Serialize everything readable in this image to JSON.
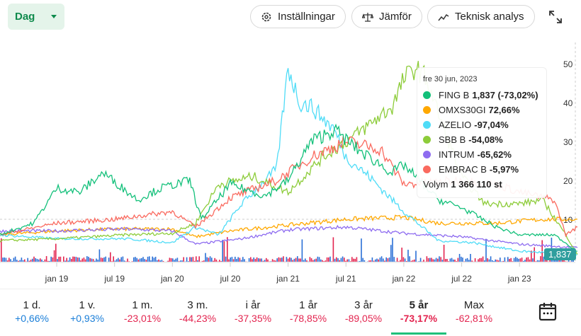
{
  "header": {
    "interval": "Dag",
    "settings": "Inställningar",
    "compare": "Jämför",
    "technical": "Teknisk analys"
  },
  "tooltip": {
    "date": "fre 30 jun, 2023",
    "rows": [
      {
        "name": "FING B",
        "value": "1,837 (-73,02%)",
        "color": "#13c07a"
      },
      {
        "name": "OMXS30GI",
        "value": "72,66%",
        "color": "#ffa800"
      },
      {
        "name": "AZELIO",
        "value": "-97,04%",
        "color": "#4fdcf7"
      },
      {
        "name": "SBB B",
        "value": "-54,08%",
        "color": "#8dcc3a"
      },
      {
        "name": "INTRUM",
        "value": "-65,62%",
        "color": "#8e6cf0"
      },
      {
        "name": "EMBRAC B",
        "value": "-5,97%",
        "color": "#fa6a5f"
      }
    ],
    "volume_label": "Volym",
    "volume": "1 366 110 st"
  },
  "last_price": "1,837",
  "periods": [
    {
      "label": "1 d.",
      "value": "+0,66%",
      "pos": true
    },
    {
      "label": "1 v.",
      "value": "+0,93%",
      "pos": true
    },
    {
      "label": "1 m.",
      "value": "-23,01%"
    },
    {
      "label": "3 m.",
      "value": "-44,23%"
    },
    {
      "label": "i år",
      "value": "-37,35%"
    },
    {
      "label": "1 år",
      "value": "-78,85%"
    },
    {
      "label": "3 år",
      "value": "-89,05%"
    },
    {
      "label": "5 år",
      "value": "-73,17%",
      "active": true
    },
    {
      "label": "Max",
      "value": "-62,81%"
    }
  ],
  "chart_data": {
    "type": "line",
    "xlim": [
      2018.5,
      2023.5
    ],
    "ylim": [
      0,
      52
    ],
    "y_ticks": [
      10,
      20,
      30,
      40,
      50
    ],
    "x_ticks": [
      {
        "t": 2019.0,
        "label": "jan 19"
      },
      {
        "t": 2019.5,
        "label": "jul 19"
      },
      {
        "t": 2020.0,
        "label": "jan 20"
      },
      {
        "t": 2020.5,
        "label": "jul 20"
      },
      {
        "t": 2021.0,
        "label": "jan 21"
      },
      {
        "t": 2021.5,
        "label": "jul 21"
      },
      {
        "t": 2022.0,
        "label": "jan 22"
      },
      {
        "t": 2022.5,
        "label": "jul 22"
      },
      {
        "t": 2023.0,
        "label": "jan 23"
      }
    ],
    "series": [
      {
        "name": "OMXS30GI",
        "color": "#ffa800",
        "points": [
          [
            2018.5,
            6
          ],
          [
            2019.0,
            7
          ],
          [
            2019.5,
            7.5
          ],
          [
            2020.0,
            7.5
          ],
          [
            2020.2,
            5.5
          ],
          [
            2020.5,
            7
          ],
          [
            2021.0,
            8.5
          ],
          [
            2021.5,
            10
          ],
          [
            2022.0,
            10.5
          ],
          [
            2022.3,
            9
          ],
          [
            2022.8,
            9
          ],
          [
            2023.2,
            10
          ],
          [
            2023.5,
            10
          ]
        ]
      },
      {
        "name": "INTRUM",
        "color": "#8e6cf0",
        "points": [
          [
            2018.5,
            7
          ],
          [
            2019.0,
            7
          ],
          [
            2019.6,
            7.5
          ],
          [
            2020.0,
            7
          ],
          [
            2020.2,
            3.6
          ],
          [
            2020.6,
            5
          ],
          [
            2021.0,
            7.3
          ],
          [
            2021.5,
            8
          ],
          [
            2022.0,
            6.4
          ],
          [
            2022.5,
            5.5
          ],
          [
            2023.0,
            3.6
          ],
          [
            2023.5,
            2.7
          ]
        ]
      },
      {
        "name": "AZELIO",
        "color": "#4fdcf7",
        "points": [
          [
            2018.5,
            6
          ],
          [
            2019.0,
            5
          ],
          [
            2019.6,
            5
          ],
          [
            2020.0,
            4
          ],
          [
            2020.2,
            8
          ],
          [
            2020.4,
            6
          ],
          [
            2020.6,
            14
          ],
          [
            2020.9,
            23
          ],
          [
            2021.0,
            49
          ],
          [
            2021.1,
            40
          ],
          [
            2021.2,
            39
          ],
          [
            2021.4,
            33
          ],
          [
            2021.5,
            26
          ],
          [
            2021.7,
            21
          ],
          [
            2022.0,
            12
          ],
          [
            2022.3,
            4.5
          ],
          [
            2022.6,
            4
          ],
          [
            2023.0,
            1.8
          ],
          [
            2023.5,
            1
          ]
        ]
      },
      {
        "name": "SBB B",
        "color": "#8dcc3a",
        "points": [
          [
            2018.5,
            4.5
          ],
          [
            2019.0,
            5
          ],
          [
            2019.6,
            6
          ],
          [
            2020.0,
            6.4
          ],
          [
            2020.2,
            9
          ],
          [
            2020.4,
            19
          ],
          [
            2020.7,
            21
          ],
          [
            2021.0,
            17
          ],
          [
            2021.3,
            26
          ],
          [
            2021.6,
            32
          ],
          [
            2021.9,
            39
          ],
          [
            2022.0,
            46
          ],
          [
            2022.1,
            49
          ],
          [
            2022.2,
            46
          ],
          [
            2022.3,
            37
          ],
          [
            2022.5,
            21
          ],
          [
            2022.7,
            14
          ],
          [
            2023.0,
            14
          ],
          [
            2023.2,
            15
          ],
          [
            2023.4,
            6
          ],
          [
            2023.5,
            1
          ]
        ]
      },
      {
        "name": "EMBRAC B",
        "color": "#fa6a5f",
        "points": [
          [
            2018.5,
            6
          ],
          [
            2019.0,
            9
          ],
          [
            2019.5,
            10
          ],
          [
            2020.0,
            12
          ],
          [
            2020.2,
            8
          ],
          [
            2020.5,
            15.5
          ],
          [
            2020.9,
            20
          ],
          [
            2021.2,
            26
          ],
          [
            2021.5,
            30
          ],
          [
            2021.8,
            28
          ],
          [
            2022.0,
            19
          ],
          [
            2022.5,
            20
          ],
          [
            2022.8,
            19
          ],
          [
            2023.0,
            17
          ],
          [
            2023.3,
            15
          ],
          [
            2023.4,
            6
          ],
          [
            2023.5,
            8
          ]
        ]
      },
      {
        "name": "FING B",
        "color": "#13c07a",
        "points": [
          [
            2018.5,
            6
          ],
          [
            2018.8,
            9
          ],
          [
            2019.0,
            18
          ],
          [
            2019.2,
            17
          ],
          [
            2019.4,
            22
          ],
          [
            2019.7,
            15
          ],
          [
            2019.9,
            18
          ],
          [
            2020.15,
            20
          ],
          [
            2020.25,
            10
          ],
          [
            2020.5,
            19
          ],
          [
            2020.8,
            16
          ],
          [
            2021.0,
            20
          ],
          [
            2021.2,
            30
          ],
          [
            2021.4,
            33
          ],
          [
            2021.6,
            28
          ],
          [
            2021.9,
            22
          ],
          [
            2022.0,
            24
          ],
          [
            2022.3,
            15
          ],
          [
            2022.5,
            13
          ],
          [
            2022.8,
            8
          ],
          [
            2023.0,
            6
          ],
          [
            2023.3,
            6
          ],
          [
            2023.5,
            1.8
          ]
        ]
      }
    ]
  }
}
